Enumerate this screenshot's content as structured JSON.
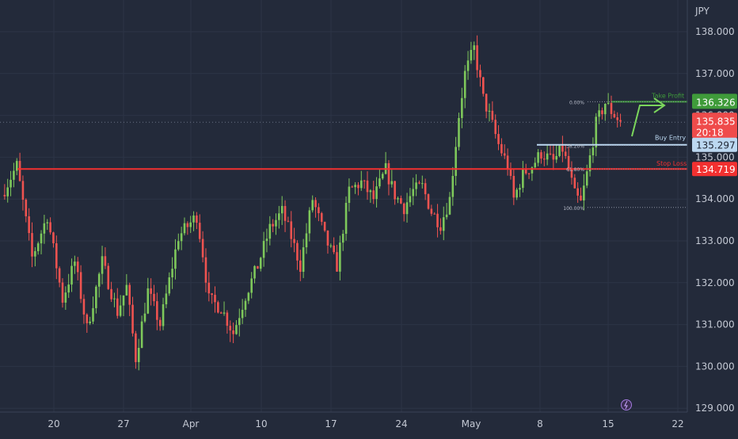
{
  "currency": "JPY",
  "colors": {
    "background": "#232a3a",
    "grid": "#2c3446",
    "text": "#c3c8d3",
    "up": "#7ec85b",
    "down": "#ef5350",
    "take_profit": "#3f9b3a",
    "stop_loss": "#f23030",
    "buy_entry": "#bcd8f1",
    "price_label": "#ef4b4b"
  },
  "levels": {
    "take_profit": {
      "label": "Take Profit",
      "value": "136.326"
    },
    "current": {
      "value": "135.835",
      "countdown": "20:18"
    },
    "buy_entry": {
      "label": "Buy Entry",
      "value": "135.297"
    },
    "stop_loss": {
      "label": "Stop Loss",
      "value": "134.719"
    }
  },
  "fib_labels": [
    "0.00%",
    "38.20%",
    "61.80%",
    "100.00%"
  ],
  "badge_icon": "lightning-icon",
  "chart_data": {
    "type": "candlestick",
    "title": "",
    "ylim": [
      128.9,
      138.7
    ],
    "yticks": [
      "138.000",
      "137.000",
      "136.000",
      "135.000",
      "134.000",
      "133.000",
      "132.000",
      "131.000",
      "130.000",
      "129.000"
    ],
    "xticks": [
      "20",
      "27",
      "Apr",
      "10",
      "17",
      "24",
      "May",
      "8",
      "15",
      "22"
    ],
    "support_resistance_line": 134.719,
    "price_path": [
      [
        0,
        134.1
      ],
      [
        5,
        134.8
      ],
      [
        10,
        132.6
      ],
      [
        15,
        133.6
      ],
      [
        20,
        131.6
      ],
      [
        24,
        132.5
      ],
      [
        28,
        130.9
      ],
      [
        33,
        132.5
      ],
      [
        38,
        131.3
      ],
      [
        41,
        131.9
      ],
      [
        44,
        130.2
      ],
      [
        48,
        131.8
      ],
      [
        52,
        131.0
      ],
      [
        58,
        133.1
      ],
      [
        64,
        133.6
      ],
      [
        66,
        132.7
      ],
      [
        68,
        131.6
      ],
      [
        72,
        131.4
      ],
      [
        76,
        130.8
      ],
      [
        80,
        131.7
      ],
      [
        84,
        132.4
      ],
      [
        88,
        133.3
      ],
      [
        92,
        133.7
      ],
      [
        95,
        133.1
      ],
      [
        98,
        132.4
      ],
      [
        102,
        134.0
      ],
      [
        106,
        133.1
      ],
      [
        110,
        132.4
      ],
      [
        114,
        134.2
      ],
      [
        118,
        134.4
      ],
      [
        122,
        134.0
      ],
      [
        126,
        134.7
      ],
      [
        129,
        134.1
      ],
      [
        132,
        133.8
      ],
      [
        135,
        134.2
      ],
      [
        138,
        134.3
      ],
      [
        141,
        133.7
      ],
      [
        144,
        133.4
      ],
      [
        147,
        134.0
      ],
      [
        150,
        136.0
      ],
      [
        152,
        137.0
      ],
      [
        155,
        137.6
      ],
      [
        158,
        136.4
      ],
      [
        160,
        136.0
      ],
      [
        163,
        135.3
      ],
      [
        166,
        134.8
      ],
      [
        168,
        134.0
      ],
      [
        171,
        134.6
      ],
      [
        174,
        134.8
      ],
      [
        177,
        135.1
      ],
      [
        181,
        134.9
      ],
      [
        184,
        135.2
      ],
      [
        186,
        134.7
      ],
      [
        188,
        134.1
      ],
      [
        190,
        133.9
      ],
      [
        192,
        134.6
      ],
      [
        195,
        135.8
      ],
      [
        198,
        136.3
      ],
      [
        200,
        136.1
      ],
      [
        203,
        135.85
      ]
    ]
  }
}
